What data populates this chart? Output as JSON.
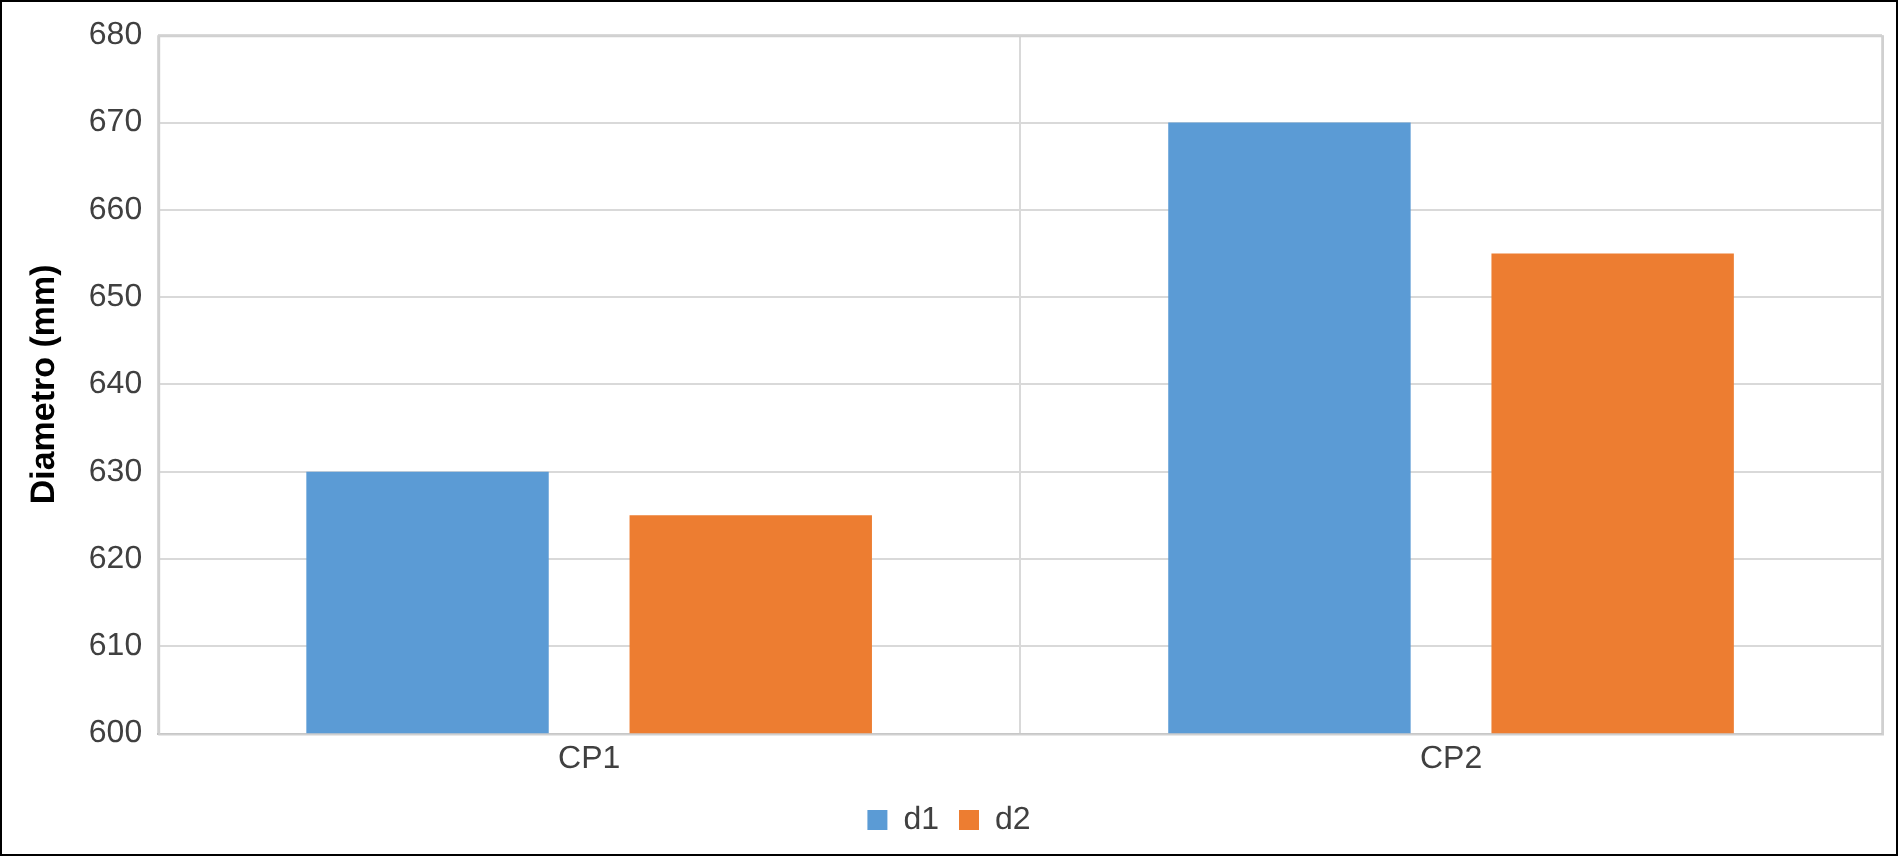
{
  "chart_data": {
    "type": "bar",
    "ylabel": "Diametro (mm)",
    "categories": [
      "CP1",
      "CP2"
    ],
    "series": [
      {
        "name": "d1",
        "color": "#5b9bd5",
        "values": [
          630,
          670
        ]
      },
      {
        "name": "d2",
        "color": "#ed7d31",
        "values": [
          625,
          655
        ]
      }
    ],
    "ylim": [
      600,
      680
    ],
    "yticks": [
      600,
      610,
      620,
      630,
      640,
      650,
      660,
      670,
      680
    ],
    "grid": true,
    "legend": "bottom"
  }
}
